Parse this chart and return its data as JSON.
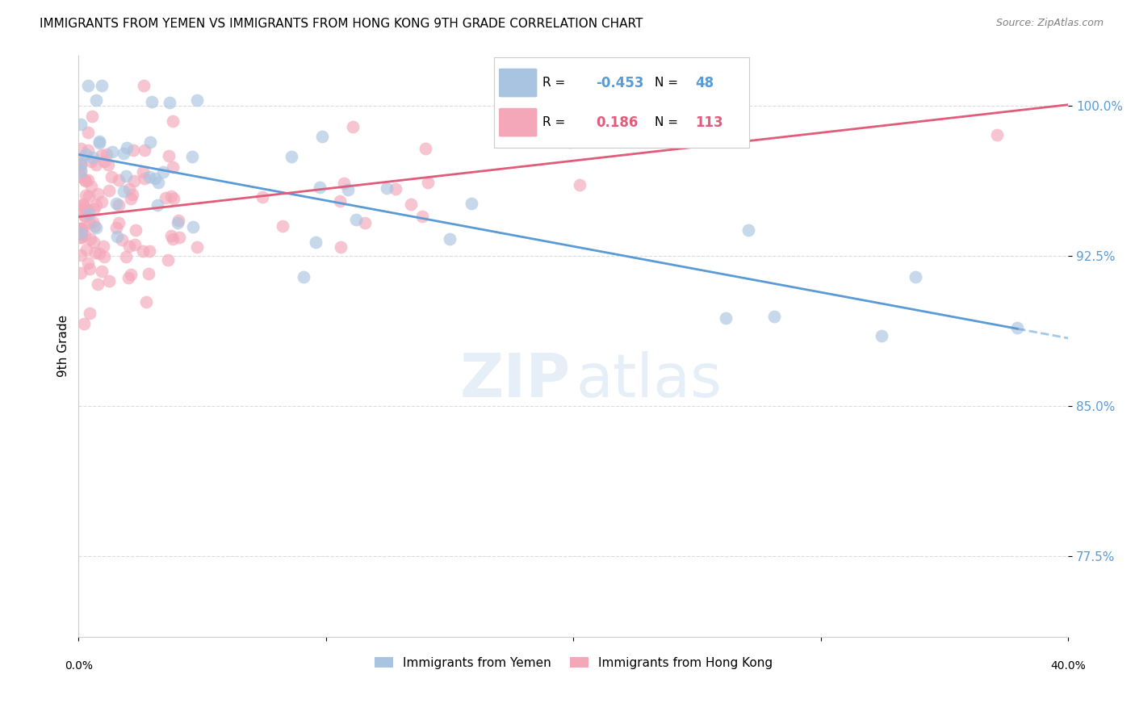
{
  "title": "IMMIGRANTS FROM YEMEN VS IMMIGRANTS FROM HONG KONG 9TH GRADE CORRELATION CHART",
  "source": "Source: ZipAtlas.com",
  "ylabel": "9th Grade",
  "ylabel_ticks": [
    "100.0%",
    "92.5%",
    "85.0%",
    "77.5%"
  ],
  "ylabel_tick_vals": [
    1.0,
    0.925,
    0.85,
    0.775
  ],
  "xlim": [
    0.0,
    0.4
  ],
  "ylim": [
    0.735,
    1.025
  ],
  "legend_r_yemen": "-0.453",
  "legend_n_yemen": "48",
  "legend_r_hk": "0.186",
  "legend_n_hk": "113",
  "color_yemen": "#a8c4e0",
  "color_hk": "#f4a7b9",
  "color_line_yemen": "#5b9bd5",
  "color_line_hk": "#e05c7a",
  "background": "#ffffff"
}
